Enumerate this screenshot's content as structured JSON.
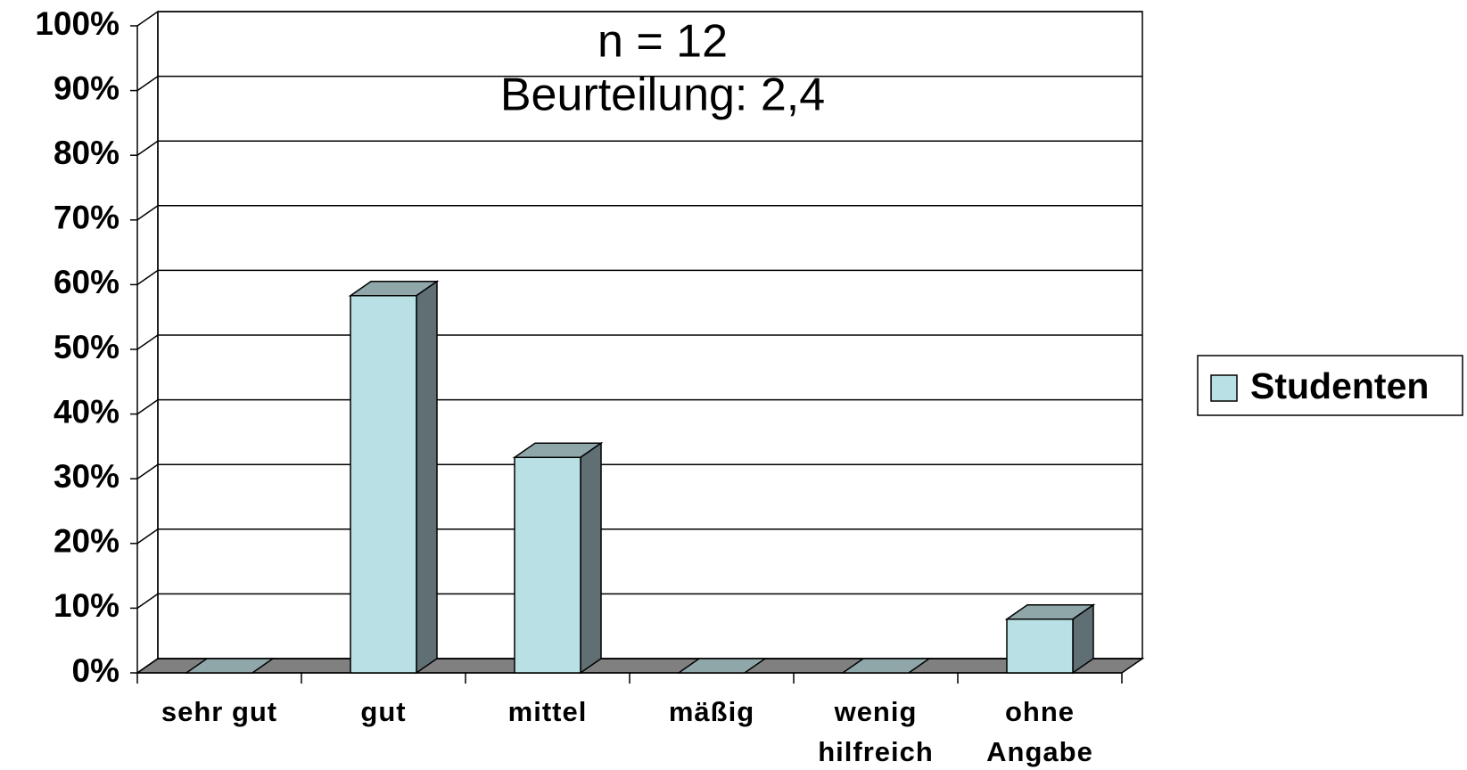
{
  "chart_data": {
    "type": "bar3d",
    "annotations": [
      "n = 12",
      "Beurteilung: 2,4"
    ],
    "categories": [
      "sehr gut",
      "gut",
      "mittel",
      "mäßig",
      "wenig hilfreich",
      "ohne Angabe"
    ],
    "series": [
      {
        "name": "Studenten",
        "color": "#b9e0e4",
        "values": [
          0,
          58.3,
          33.3,
          0,
          0,
          8.3
        ]
      }
    ],
    "ylim": [
      0,
      100
    ],
    "yticks": [
      {
        "value": 0,
        "label": "0%"
      },
      {
        "value": 10,
        "label": "10%"
      },
      {
        "value": 20,
        "label": "20%"
      },
      {
        "value": 30,
        "label": "30%"
      },
      {
        "value": 40,
        "label": "40%"
      },
      {
        "value": 50,
        "label": "50%"
      },
      {
        "value": 60,
        "label": "60%"
      },
      {
        "value": 70,
        "label": "70%"
      },
      {
        "value": 80,
        "label": "80%"
      },
      {
        "value": 90,
        "label": "90%"
      },
      {
        "value": 100,
        "label": "100%"
      }
    ],
    "grid": true,
    "legend": "right"
  }
}
